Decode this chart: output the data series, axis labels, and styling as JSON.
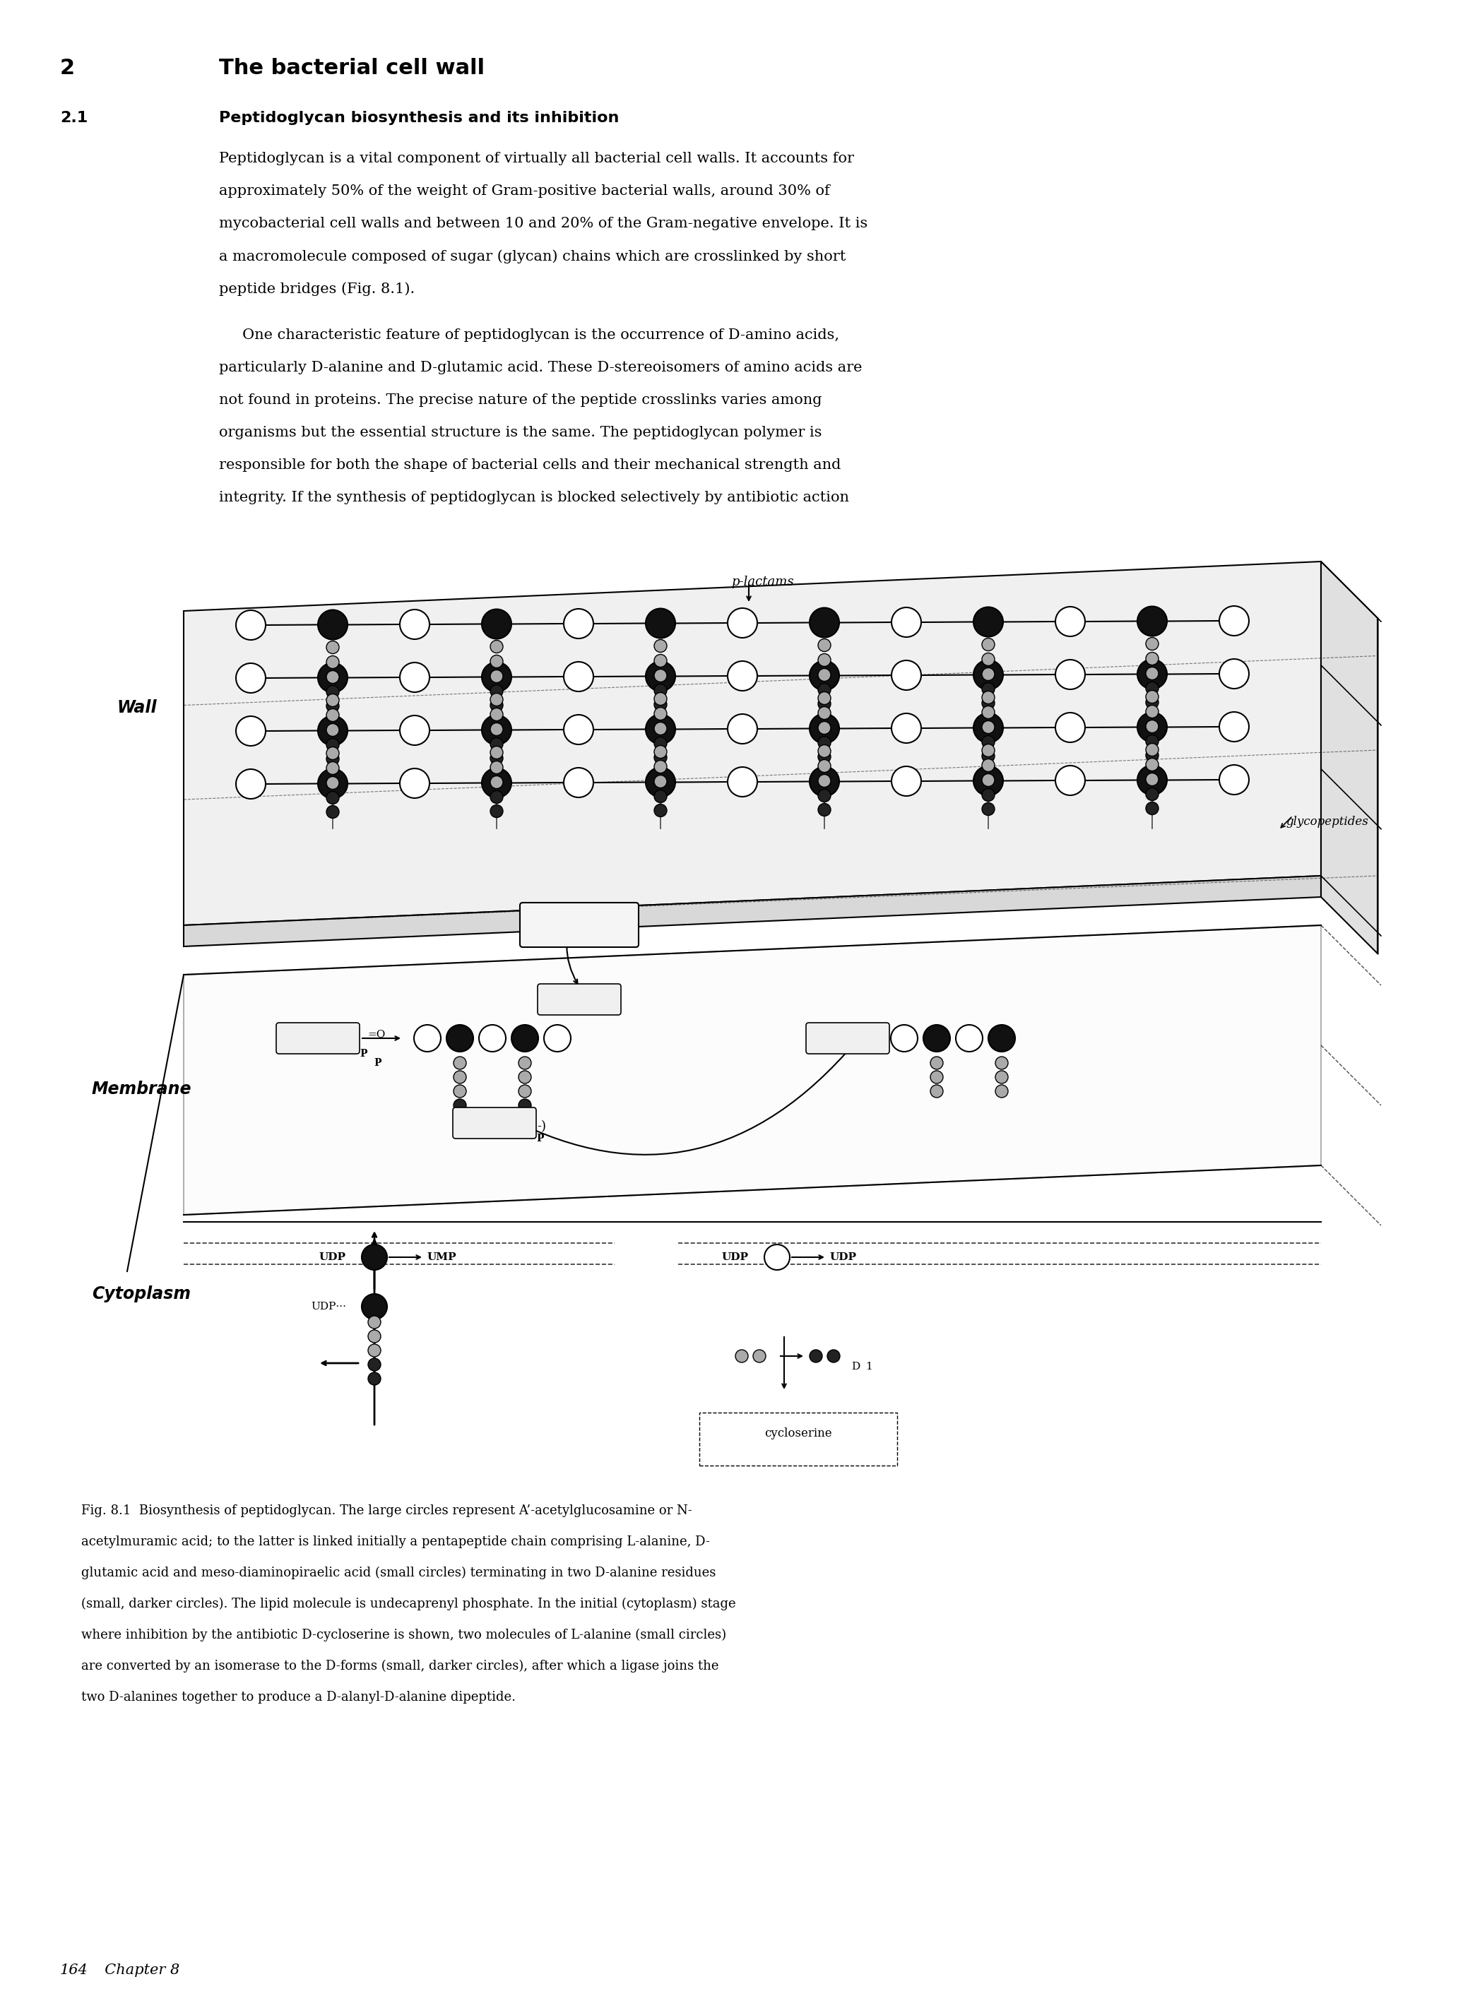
{
  "title_number": "2",
  "title_text": "The bacterial cell wall",
  "section_number": "2.1",
  "section_title": "Peptidoglycan biosynthesis and its inhibition",
  "body1_lines": [
    "Peptidoglycan is a vital component of virtually all bacterial cell walls. It accounts for",
    "approximately 50% of the weight of Gram-positive bacterial walls, around 30% of",
    "mycobacterial cell walls and between 10 and 20% of the Gram-negative envelope. It is",
    "a macromolecule composed of sugar (glycan) chains which are crosslinked by short",
    "peptide bridges (Fig. 8.1)."
  ],
  "body2_lines": [
    "     One characteristic feature of peptidoglycan is the occurrence of D-amino acids,",
    "particularly D-alanine and D-glutamic acid. These D-stereoisomers of amino acids are",
    "not found in proteins. The precise nature of the peptide crosslinks varies among",
    "organisms but the essential structure is the same. The peptidoglycan polymer is",
    "responsible for both the shape of bacterial cells and their mechanical strength and",
    "integrity. If the synthesis of peptidoglycan is blocked selectively by antibiotic action"
  ],
  "caption_lines": [
    "Fig. 8.1  Biosynthesis of peptidoglycan. The large circles represent A’-acetylglucosamine or N-",
    "acetylmuramic acid; to the latter is linked initially a pentapeptide chain comprising L-alanine, D-",
    "glutamic acid and meso-diaminopiraelic acid (small circles) terminating in two D-alanine residues",
    "(small, darker circles). The lipid molecule is undecaprenyl phosphate. In the initial (cytoplasm) stage",
    "where inhibition by the antibiotic D-cycloserine is shown, two molecules of L-alanine (small circles)",
    "are converted by an isomerase to the D-forms (small, darker circles), after which a ligase joins the",
    "two D-alanines together to produce a D-alanyl-D-alanine dipeptide."
  ],
  "page_number": "164",
  "chapter_text": "Chapter 8",
  "background_color": "#ffffff",
  "text_color": "#000000",
  "title_fontsize": 22,
  "section_fontsize": 16,
  "body_fontsize": 15,
  "caption_fontsize": 13,
  "footer_fontsize": 15
}
